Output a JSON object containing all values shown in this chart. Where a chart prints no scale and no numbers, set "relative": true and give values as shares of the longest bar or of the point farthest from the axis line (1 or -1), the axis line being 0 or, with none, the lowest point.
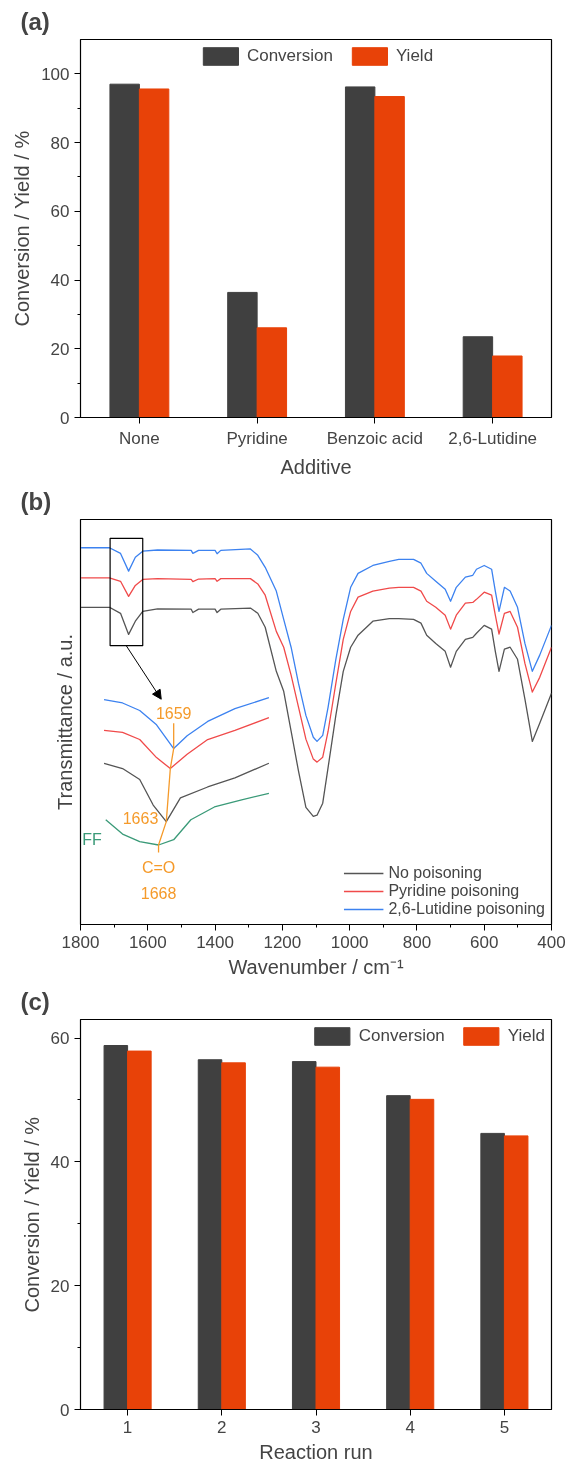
{
  "chart_data": [
    {
      "type": "bar",
      "title": "(a)",
      "xlabel": "Additive",
      "ylabel": "Conversion / Yield / %",
      "categories": [
        "None",
        "Pyridine",
        "Benzoic acid",
        "2,6-Lutidine"
      ],
      "series": [
        {
          "name": "Conversion",
          "color": "#404040",
          "values": [
            97.0,
            36.4,
            96.2,
            23.5
          ]
        },
        {
          "name": "Yield",
          "color": "#e84208",
          "values": [
            95.6,
            26.1,
            93.4,
            17.9
          ]
        }
      ],
      "ylim": [
        0,
        110
      ],
      "yticks": [
        0,
        20,
        40,
        60,
        80,
        100
      ],
      "legend": "top"
    },
    {
      "type": "line",
      "title": "(b)",
      "xlabel": "Wavenumber / cm⁻¹",
      "ylabel": "Transmittance / a.u.",
      "relative": true,
      "tick_labels": "x",
      "legend": "bottom right",
      "xlim": [
        1800,
        400
      ],
      "xticks": [
        1800,
        1600,
        1400,
        1200,
        1000,
        800,
        600,
        400
      ],
      "x": [
        1800,
        1714,
        1681,
        1657,
        1637,
        1615,
        1571,
        1471,
        1466,
        1449,
        1400,
        1394,
        1383,
        1295,
        1273,
        1251,
        1218,
        1196,
        1174,
        1152,
        1130,
        1108,
        1097,
        1080,
        1064,
        1041,
        1019,
        997,
        975,
        931,
        882,
        854,
        810,
        788,
        771,
        744,
        716,
        700,
        683,
        656,
        634,
        623,
        600,
        578,
        567,
        556,
        540,
        523,
        501,
        479,
        457,
        435,
        400
      ],
      "series": [
        {
          "name": "No poisoning",
          "color": "#555555",
          "values": [
            0.842,
            0.842,
            0.826,
            0.77,
            0.805,
            0.831,
            0.838,
            0.837,
            0.828,
            0.837,
            0.837,
            0.828,
            0.837,
            0.84,
            0.826,
            0.789,
            0.672,
            0.619,
            0.513,
            0.407,
            0.311,
            0.287,
            0.29,
            0.322,
            0.417,
            0.555,
            0.672,
            0.736,
            0.768,
            0.805,
            0.812,
            0.812,
            0.81,
            0.8,
            0.768,
            0.746,
            0.725,
            0.683,
            0.725,
            0.757,
            0.762,
            0.773,
            0.794,
            0.784,
            0.725,
            0.672,
            0.731,
            0.736,
            0.704,
            0.598,
            0.486,
            0.534,
            0.614
          ]
        },
        {
          "name": "Pyridine poisoning",
          "color": "#f04a4a",
          "values": [
            0.92,
            0.92,
            0.911,
            0.871,
            0.9,
            0.916,
            0.918,
            0.916,
            0.91,
            0.917,
            0.918,
            0.911,
            0.918,
            0.918,
            0.904,
            0.874,
            0.778,
            0.736,
            0.662,
            0.577,
            0.492,
            0.439,
            0.431,
            0.444,
            0.513,
            0.64,
            0.757,
            0.831,
            0.869,
            0.885,
            0.893,
            0.895,
            0.895,
            0.885,
            0.858,
            0.842,
            0.821,
            0.784,
            0.821,
            0.853,
            0.855,
            0.863,
            0.882,
            0.874,
            0.821,
            0.771,
            0.826,
            0.831,
            0.789,
            0.693,
            0.617,
            0.656,
            0.736
          ]
        },
        {
          "name": "2,6-Lutidine poisoning",
          "color": "#3c82f0",
          "values": [
            1.0,
            1.0,
            0.985,
            0.938,
            0.975,
            0.991,
            0.994,
            0.993,
            0.985,
            0.993,
            0.993,
            0.984,
            0.993,
            0.997,
            0.98,
            0.948,
            0.885,
            0.81,
            0.736,
            0.64,
            0.555,
            0.497,
            0.486,
            0.502,
            0.577,
            0.704,
            0.81,
            0.895,
            0.932,
            0.953,
            0.964,
            0.969,
            0.969,
            0.959,
            0.932,
            0.911,
            0.89,
            0.858,
            0.895,
            0.922,
            0.927,
            0.943,
            0.953,
            0.943,
            0.885,
            0.831,
            0.895,
            0.885,
            0.842,
            0.746,
            0.672,
            0.715,
            0.794
          ]
        },
        {
          "color": "#3c82f0",
          "x": [
            1730,
            1675,
            1624,
            1574,
            1523,
            1483,
            1422,
            1341,
            1240
          ],
          "values": [
            0.597,
            0.588,
            0.568,
            0.53,
            0.467,
            0.501,
            0.539,
            0.573,
            0.602
          ]
        },
        {
          "color": "#f04a4a",
          "x": [
            1730,
            1675,
            1624,
            1574,
            1533,
            1483,
            1422,
            1341,
            1240
          ],
          "values": [
            0.515,
            0.51,
            0.491,
            0.443,
            0.414,
            0.452,
            0.491,
            0.515,
            0.549
          ]
        },
        {
          "color": "#555555",
          "x": [
            1730,
            1675,
            1624,
            1584,
            1545,
            1503,
            1422,
            1341,
            1240
          ],
          "values": [
            0.428,
            0.414,
            0.385,
            0.317,
            0.273,
            0.336,
            0.365,
            0.389,
            0.428
          ]
        },
        {
          "color": "#3a9a78",
          "x": [
            1725,
            1675,
            1624,
            1568,
            1523,
            1472,
            1402,
            1321,
            1240
          ],
          "values": [
            0.278,
            0.24,
            0.22,
            0.211,
            0.225,
            0.278,
            0.312,
            0.331,
            0.348
          ]
        },
        {
          "color": "#f59a2a",
          "x": [
            1523,
            1523,
            1533,
            1545,
            1568,
            1568
          ],
          "values": [
            0.534,
            0.467,
            0.414,
            0.273,
            0.211,
            0.191
          ]
        }
      ],
      "annotations": [
        {
          "text": "1659",
          "x": 1523,
          "y": 0.467
        },
        {
          "text": "1663",
          "x": 1545,
          "y": 0.273
        },
        {
          "text": "FF",
          "x": 1725,
          "y": 0.278
        },
        {
          "text": "C=O",
          "x": 1568,
          "y": 0.191
        },
        {
          "text": "1668",
          "x": 1568,
          "y": 0.191
        }
      ]
    },
    {
      "type": "bar",
      "title": "(c)",
      "xlabel": "Reaction run",
      "ylabel": "Conversion / Yield / %",
      "categories": [
        "1",
        "2",
        "3",
        "4",
        "5"
      ],
      "series": [
        {
          "name": "Conversion",
          "color": "#404040",
          "values": [
            58.8,
            56.5,
            56.2,
            50.7,
            44.6
          ]
        },
        {
          "name": "Yield",
          "color": "#e84208",
          "values": [
            57.9,
            56.0,
            55.3,
            50.1,
            44.2
          ]
        }
      ],
      "ylim": [
        0,
        63
      ],
      "yticks": [
        0,
        20,
        40,
        60
      ],
      "legend": "top right"
    }
  ]
}
